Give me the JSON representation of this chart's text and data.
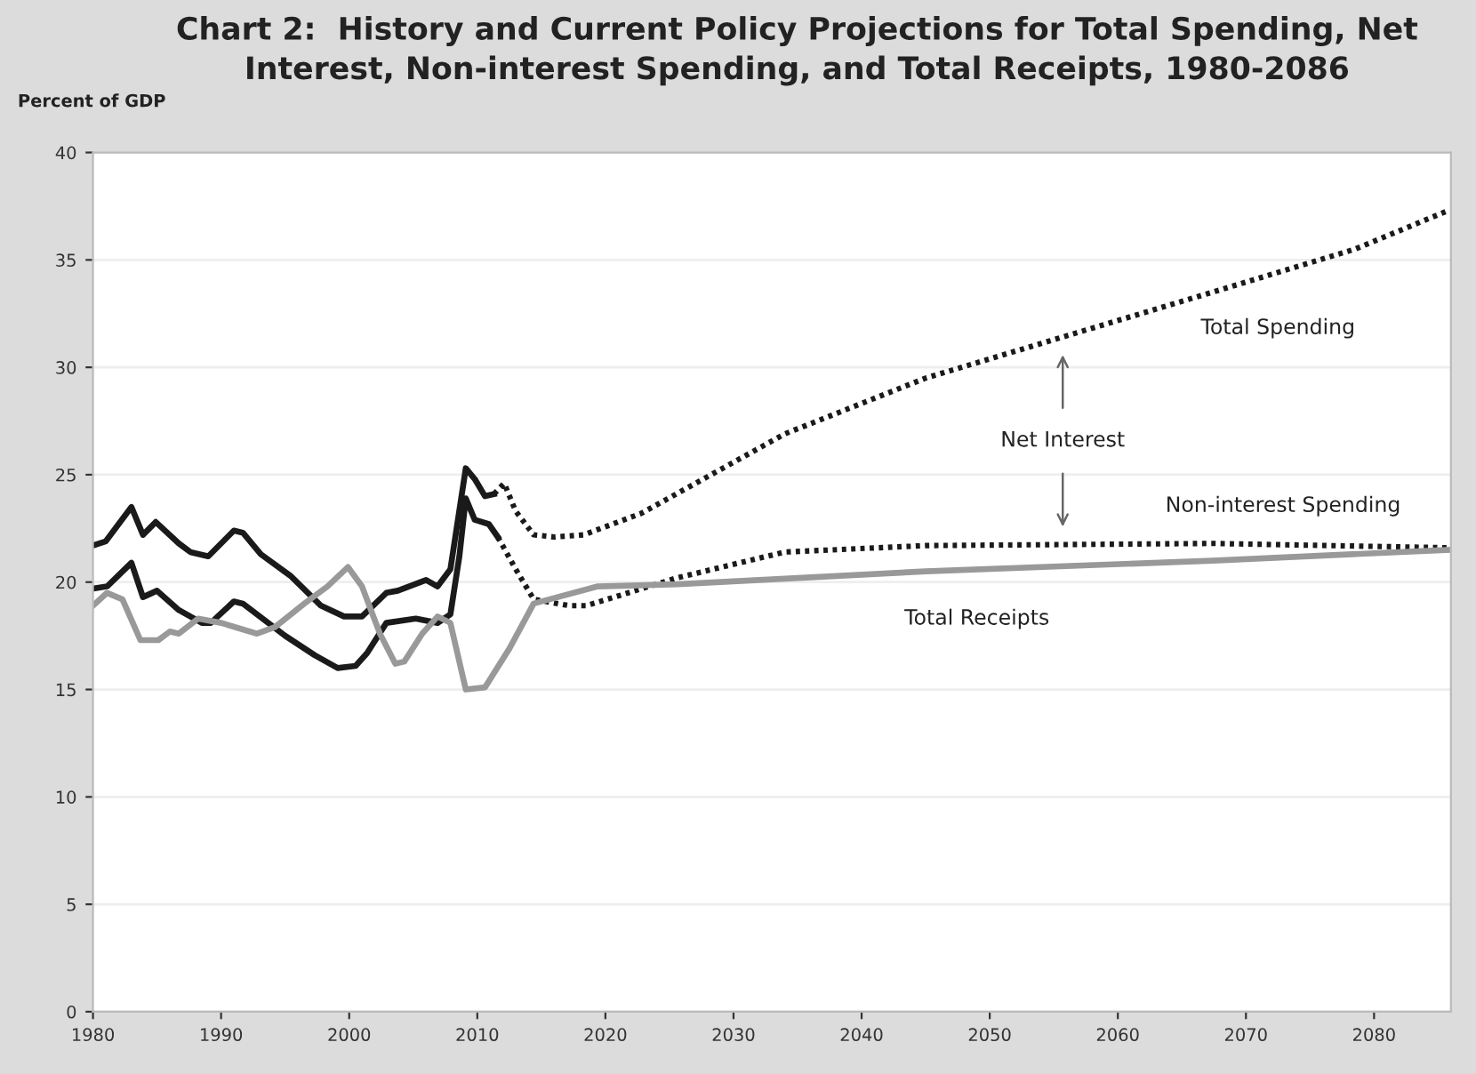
{
  "chart_data": {
    "type": "line",
    "title": "Chart 2:  History and Current Policy Projections for Total Spending, Net\nInterest, Non-interest Spending, and Total Receipts, 1980-2086",
    "ylabel": "Percent of GDP",
    "xlim": [
      1980,
      2086
    ],
    "ylim": [
      0,
      40
    ],
    "xticks": [
      1980,
      1990,
      2000,
      2010,
      2020,
      2030,
      2040,
      2050,
      2060,
      2070,
      2080
    ],
    "yticks": [
      0,
      5,
      10,
      15,
      20,
      25,
      30,
      35,
      40
    ],
    "grid": "y",
    "legend": false,
    "marker": "none",
    "series": [
      {
        "color": "#1a1a1a",
        "line_style": "solid",
        "x": [
          1980,
          1981,
          1983,
          1983.9,
          1984.9,
          1986.7,
          1987.6,
          1989,
          1991,
          1991.7,
          1993.1,
          1995.4,
          1997.8,
          1999.6,
          2001,
          2002.9,
          2003.8,
          2006,
          2006.9,
          2007.9,
          2009.1,
          2009.8,
          2010.6,
          2011.3
        ],
        "values": [
          21.7,
          21.9,
          23.5,
          22.2,
          22.8,
          21.8,
          21.4,
          21.2,
          22.4,
          22.3,
          21.3,
          20.3,
          18.9,
          18.4,
          18.4,
          19.5,
          19.6,
          20.1,
          19.8,
          20.6,
          25.3,
          24.8,
          24.0,
          24.1
        ]
      },
      {
        "name": "Total Spending",
        "color": "#1a1a1a",
        "line_style": "dotted",
        "x": [
          2011.3,
          2012.1,
          2013,
          2014.4,
          2016,
          2018.3,
          2022.8,
          2034,
          2045,
          2056.2,
          2067.4,
          2078.5,
          2085.8
        ],
        "values": [
          24.1,
          24.6,
          23.3,
          22.2,
          22.1,
          22.2,
          23.2,
          26.9,
          29.5,
          31.5,
          33.5,
          35.5,
          37.3
        ]
      },
      {
        "color": "#1a1a1a",
        "line_style": "solid",
        "x": [
          1980,
          1981.1,
          1983,
          1983.9,
          1985,
          1986.7,
          1988.5,
          1989.2,
          1991,
          1991.7,
          1995,
          1997.3,
          1999.1,
          2000.5,
          2001.4,
          2002.9,
          2005.2,
          2006.9,
          2007.9,
          2008.6,
          2009.1,
          2009.8,
          2010.9,
          2011.6
        ],
        "values": [
          19.7,
          19.8,
          20.9,
          19.3,
          19.6,
          18.7,
          18.1,
          18.1,
          19.1,
          19.0,
          17.5,
          16.6,
          16.0,
          16.1,
          16.7,
          18.1,
          18.3,
          18.1,
          18.5,
          21.2,
          23.9,
          22.9,
          22.7,
          22.1
        ]
      },
      {
        "name": "Non-interest Spending",
        "color": "#1a1a1a",
        "line_style": "dotted",
        "x": [
          2011.6,
          2013,
          2014.4,
          2017.2,
          2018.5,
          2025.6,
          2034,
          2045,
          2067.4,
          2085.8
        ],
        "values": [
          22.1,
          20.6,
          19.2,
          18.9,
          18.9,
          20.2,
          21.4,
          21.7,
          21.8,
          21.6
        ]
      },
      {
        "name": "Total Receipts",
        "color": "#999999",
        "line_style": "solid",
        "x": [
          1980,
          1981.1,
          1982.3,
          1983.7,
          1985.1,
          1986,
          1986.7,
          1988.2,
          1990,
          1992.8,
          1994.2,
          1996.5,
          1998.3,
          1999.9,
          2001,
          2002.4,
          2003.6,
          2004.3,
          2005.7,
          2006.9,
          2007.9,
          2009.1,
          2010.6,
          2012.5,
          2014.4,
          2019.4,
          2025.6,
          2045,
          2067.4,
          2085.8
        ],
        "values": [
          18.9,
          19.5,
          19.2,
          17.3,
          17.3,
          17.7,
          17.6,
          18.3,
          18.1,
          17.6,
          17.9,
          19.0,
          19.8,
          20.7,
          19.8,
          17.6,
          16.2,
          16.3,
          17.6,
          18.4,
          18.1,
          15.0,
          15.1,
          16.9,
          19.0,
          19.8,
          19.9,
          20.5,
          21.0,
          21.5
        ]
      }
    ],
    "annotations": [
      "Net Interest"
    ]
  }
}
